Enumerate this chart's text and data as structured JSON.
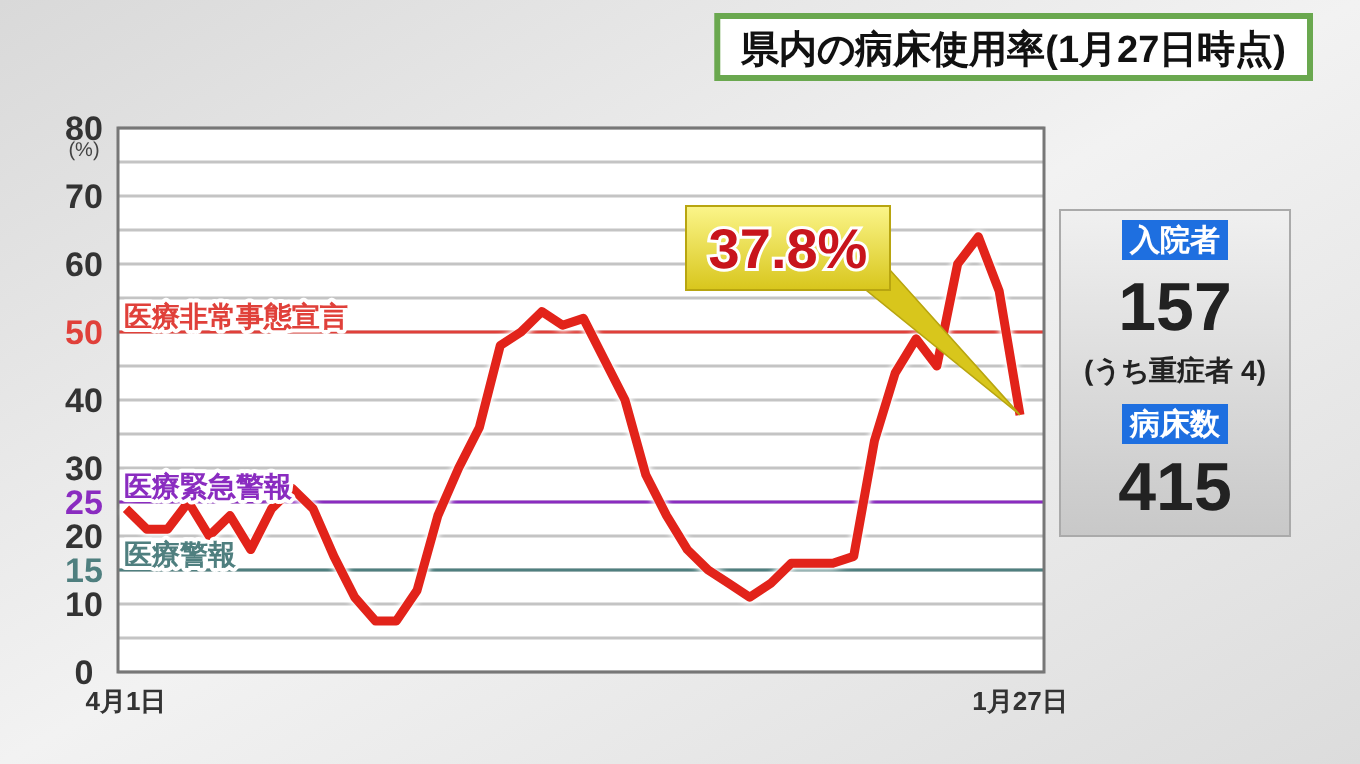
{
  "chart_data": [
    {
      "type": "line",
      "title": "県内の病床使用率(1月27日時点)",
      "ylabel": "(%)",
      "categories": [
        "4月1日",
        null,
        null,
        null,
        null,
        null,
        null,
        null,
        null,
        null,
        null,
        null,
        null,
        null,
        null,
        null,
        null,
        null,
        null,
        null,
        null,
        null,
        null,
        null,
        null,
        null,
        null,
        null,
        null,
        null,
        null,
        null,
        null,
        null,
        null,
        null,
        null,
        null,
        null,
        null,
        null,
        null,
        null,
        "1月27日"
      ],
      "series": [
        {
          "color": "#e2231a",
          "values": [
            24,
            21,
            21,
            25,
            20,
            23,
            18,
            24,
            27,
            24,
            17,
            11,
            7.5,
            7.5,
            12,
            23,
            30,
            36,
            48,
            50,
            53,
            51,
            52,
            46,
            40,
            29,
            23,
            18,
            15,
            13,
            11,
            13,
            16,
            16,
            16,
            17,
            34,
            44,
            49,
            45,
            60,
            64,
            56,
            37.8
          ]
        }
      ],
      "ylim": [
        0,
        80
      ],
      "yticks": [
        0,
        {
          "value": 5,
          "label": null
        },
        10,
        15,
        20,
        25,
        30,
        {
          "value": 35,
          "label": null
        },
        40,
        {
          "value": 45,
          "label": null
        },
        50,
        {
          "value": 55,
          "label": null
        },
        60,
        {
          "value": 65,
          "label": null
        },
        70,
        {
          "value": 75,
          "label": null
        },
        80
      ],
      "grid": "y",
      "ref_lines": [
        {
          "axis": "y",
          "value": 50,
          "label": "医療非常事態宣言",
          "color": "#e0403a"
        },
        {
          "axis": "y",
          "value": 25,
          "label": "医療緊急警報",
          "color": "#8a2cc0"
        },
        {
          "axis": "y",
          "value": 15,
          "label": "医療警報",
          "color": "#4f7f7f"
        }
      ],
      "annotations": [
        "37.8%"
      ]
    },
    {
      "type": "other",
      "annotations": [
        "入院者",
        "157",
        "(うち重症者 4)",
        "病床数",
        "415"
      ]
    }
  ]
}
